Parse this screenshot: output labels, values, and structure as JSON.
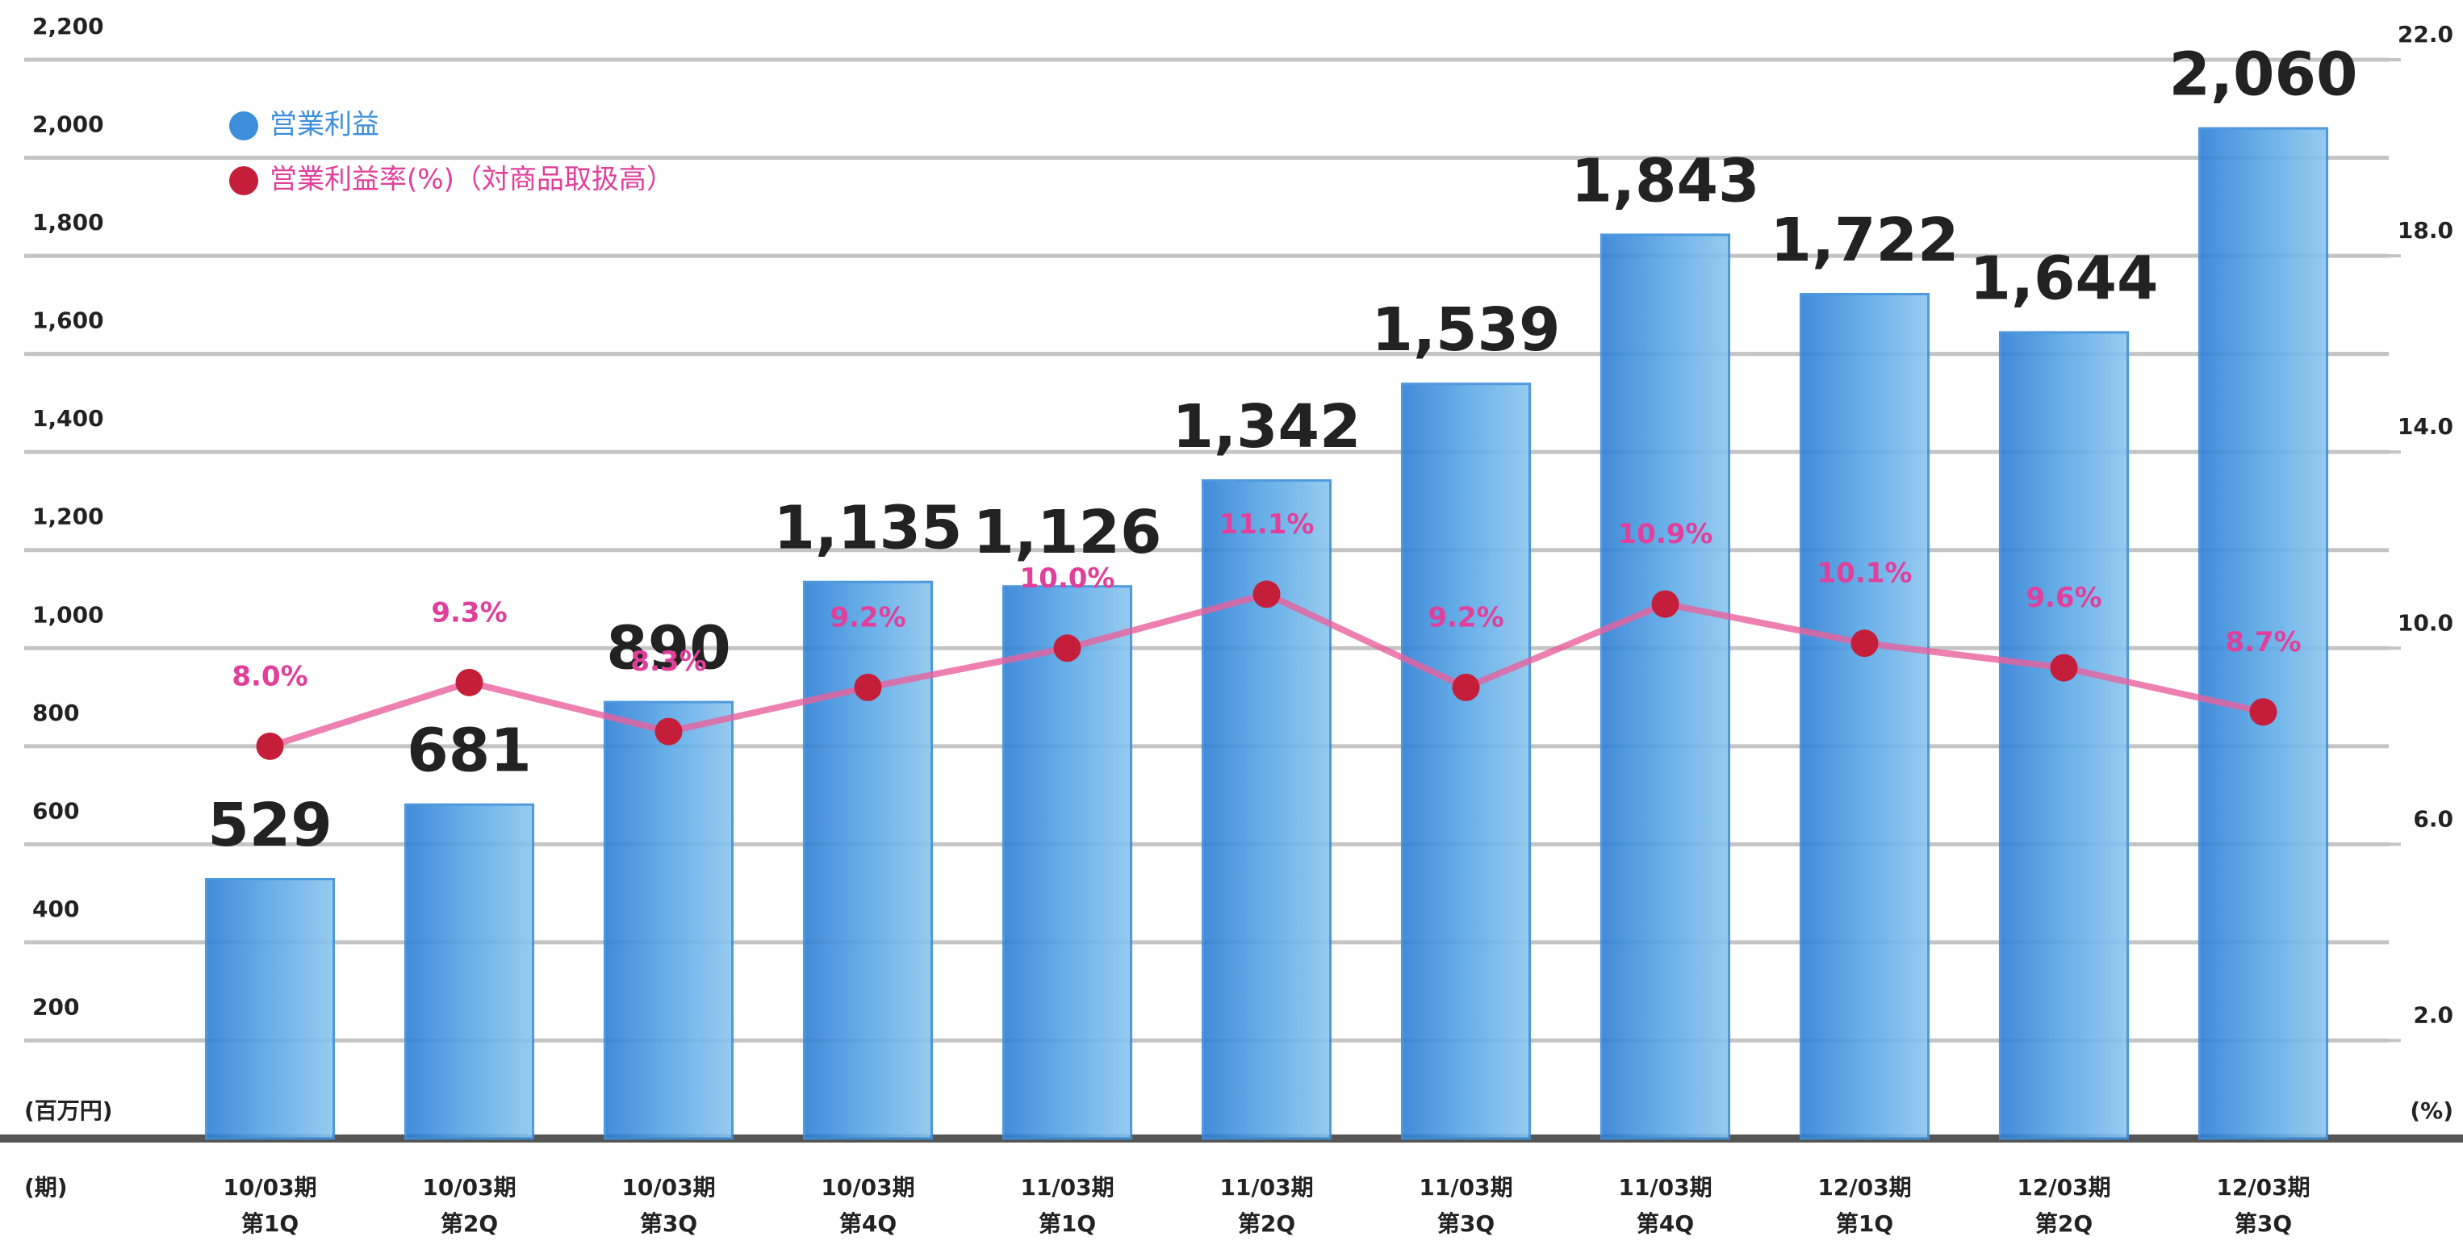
{
  "chart_data": {
    "type": "bar",
    "categories": [
      [
        "10/03期",
        "第1Q"
      ],
      [
        "10/03期",
        "第2Q"
      ],
      [
        "10/03期",
        "第3Q"
      ],
      [
        "10/03期",
        "第4Q"
      ],
      [
        "11/03期",
        "第1Q"
      ],
      [
        "11/03期",
        "第2Q"
      ],
      [
        "11/03期",
        "第3Q"
      ],
      [
        "11/03期",
        "第4Q"
      ],
      [
        "12/03期",
        "第1Q"
      ],
      [
        "12/03期",
        "第2Q"
      ],
      [
        "12/03期",
        "第3Q"
      ]
    ],
    "x_label": "(期)",
    "y_label": "(百万円)",
    "y2_label": "(%)",
    "series": [
      {
        "name": "営業利益",
        "type": "bar",
        "color": "#3d8fdb",
        "values": [
          529,
          681,
          890,
          1135,
          1126,
          1342,
          1539,
          1843,
          1722,
          1644,
          2060
        ],
        "value_labels": [
          "529",
          "681",
          "890",
          "1,135",
          "1,126",
          "1,342",
          "1,539",
          "1,843",
          "1,722",
          "1,644",
          "2,060"
        ]
      },
      {
        "name": "営業利益率(%)（対商品取扱高）",
        "type": "line",
        "axis": "y2",
        "color": "#e8609c",
        "marker_color": "#c41e3a",
        "label_color": "#e0409a",
        "values": [
          8.0,
          9.3,
          8.3,
          9.2,
          10.0,
          11.1,
          9.2,
          10.9,
          10.1,
          9.6,
          8.7
        ],
        "value_labels": [
          "8.0%",
          "9.3%",
          "8.3%",
          "9.2%",
          "10.0%",
          "11.1%",
          "9.2%",
          "10.9%",
          "10.1%",
          "9.6%",
          "8.7%"
        ]
      }
    ],
    "ylim": [
      0,
      2200
    ],
    "yticks": [
      {
        "value": 200,
        "label": "200"
      },
      {
        "value": 400,
        "label": "400"
      },
      {
        "value": 600,
        "label": "600"
      },
      {
        "value": 800,
        "label": "800"
      },
      {
        "value": 1000,
        "label": "1,000"
      },
      {
        "value": 1200,
        "label": "1,200"
      },
      {
        "value": 1400,
        "label": "1,400"
      },
      {
        "value": 1600,
        "label": "1,600"
      },
      {
        "value": 1800,
        "label": "1,800"
      },
      {
        "value": 2000,
        "label": "2,000"
      },
      {
        "value": 2200,
        "label": "2,200"
      }
    ],
    "y2lim": [
      0,
      22
    ],
    "y2ticks": [
      {
        "value": 2,
        "label": "2.0"
      },
      {
        "value": 6,
        "label": "6.0"
      },
      {
        "value": 10,
        "label": "10.0"
      },
      {
        "value": 14,
        "label": "14.0"
      },
      {
        "value": 18,
        "label": "18.0"
      },
      {
        "value": 22,
        "label": "22.0"
      }
    ],
    "grid": true,
    "legend": "top-left"
  }
}
